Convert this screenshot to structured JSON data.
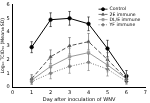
{
  "chart_data": {
    "type": "line",
    "x_label": "Day after inoculation of WNV",
    "y_label": "Log₁₀ TCID₅₀ (Mean±SD)",
    "x": [
      1,
      2,
      3,
      4,
      5,
      6
    ],
    "series": [
      {
        "name": "Control",
        "color": "#000000",
        "marker": "circle",
        "line_style": "solid",
        "values": [
          2.9,
          4.9,
          5.0,
          4.6,
          2.8,
          0.8
        ],
        "errors": [
          0.4,
          0.5,
          0.5,
          0.5,
          0.6,
          0.4
        ]
      },
      {
        "name": "2E immune",
        "color": "#555555",
        "marker": "triangle",
        "line_style": "dashed",
        "values": [
          0.6,
          2.2,
          3.0,
          3.3,
          2.0,
          0.6
        ],
        "errors": [
          0.3,
          0.5,
          0.6,
          0.6,
          0.5,
          0.3
        ]
      },
      {
        "name": "DL/E immune",
        "color": "#999999",
        "marker": "square",
        "line_style": "solid",
        "values": [
          0.5,
          1.5,
          2.2,
          2.5,
          1.6,
          0.6
        ],
        "errors": [
          0.3,
          0.5,
          0.6,
          0.7,
          0.5,
          0.3
        ]
      },
      {
        "name": "YF immune",
        "color": "#777777",
        "marker": "diamond",
        "line_style": "dotted",
        "values": [
          0.4,
          1.0,
          1.5,
          1.8,
          1.3,
          0.4
        ],
        "errors": [
          0.2,
          0.4,
          0.5,
          0.6,
          0.5,
          0.2
        ]
      }
    ],
    "xlim": [
      0,
      7
    ],
    "xticks": [
      0,
      1,
      2,
      3,
      4,
      5,
      6,
      7
    ],
    "ylim": [
      0,
      6
    ],
    "yticks": [
      0,
      1,
      2,
      3,
      4,
      5,
      6
    ],
    "grid": false,
    "legend": "upper right"
  }
}
